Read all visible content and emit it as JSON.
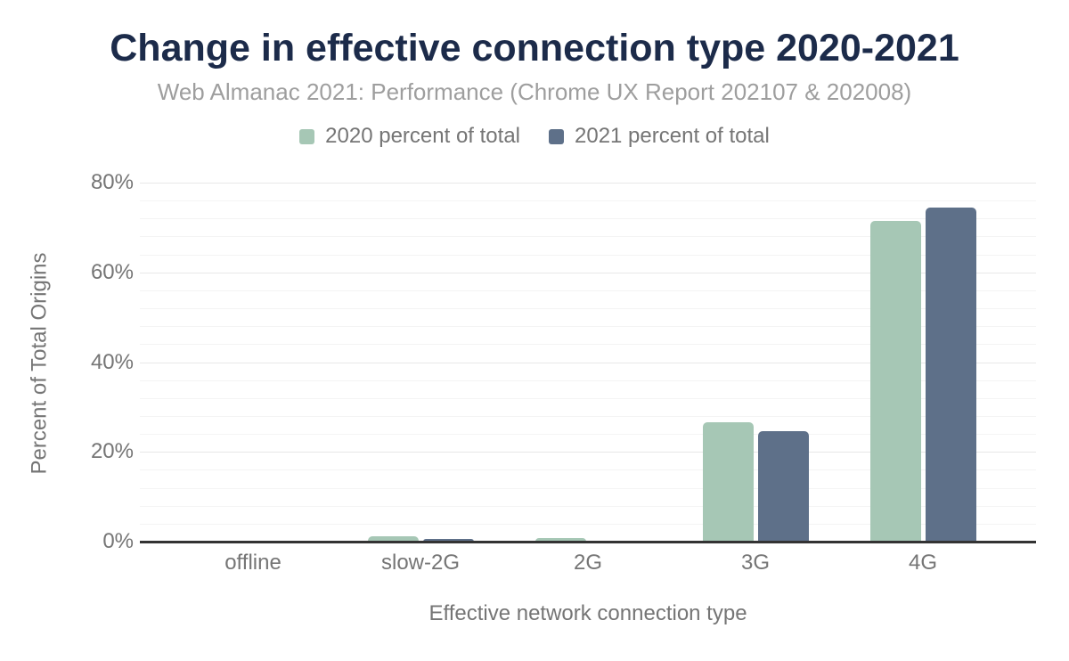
{
  "header": {
    "title": "Change in effective connection type 2020-2021",
    "subtitle": "Web Almanac 2021: Performance (Chrome UX Report 202107 & 202008)"
  },
  "legend": {
    "items": [
      {
        "label": "2020 percent of total",
        "color": "#a6c7b5"
      },
      {
        "label": "2021 percent of total",
        "color": "#5e7089"
      }
    ]
  },
  "chart_data": {
    "type": "bar",
    "title": "Change in effective connection type 2020-2021",
    "subtitle": "Web Almanac 2021: Performance (Chrome UX Report 202107 & 202008)",
    "categories": [
      "offline",
      "slow-2G",
      "2G",
      "3G",
      "4G"
    ],
    "series": [
      {
        "name": "2020 percent of total",
        "color": "#a6c7b5",
        "values": [
          0,
          1.1,
          0.8,
          26.7,
          71.4
        ]
      },
      {
        "name": "2021 percent of total",
        "color": "#5e7089",
        "values": [
          0,
          0.6,
          0.1,
          24.7,
          74.4
        ]
      }
    ],
    "xlabel": "Effective network connection type",
    "ylabel": "Percent of Total Origins",
    "ylim": [
      0,
      80
    ],
    "yticks": [
      0,
      20,
      40,
      60,
      80
    ],
    "ytick_labels": [
      "0%",
      "20%",
      "40%",
      "60%",
      "80%"
    ],
    "minor_gridline_step": 4,
    "major_gridline_step": 20,
    "grid": true,
    "legend_position": "top"
  },
  "colors": {
    "title": "#1c2b4a",
    "subtitle_text": "#9e9e9e",
    "axis_text": "#757575",
    "baseline": "#333333",
    "gridline_minor": "#f4f4f4",
    "gridline_major": "#e8e8e8",
    "background": "#ffffff"
  }
}
